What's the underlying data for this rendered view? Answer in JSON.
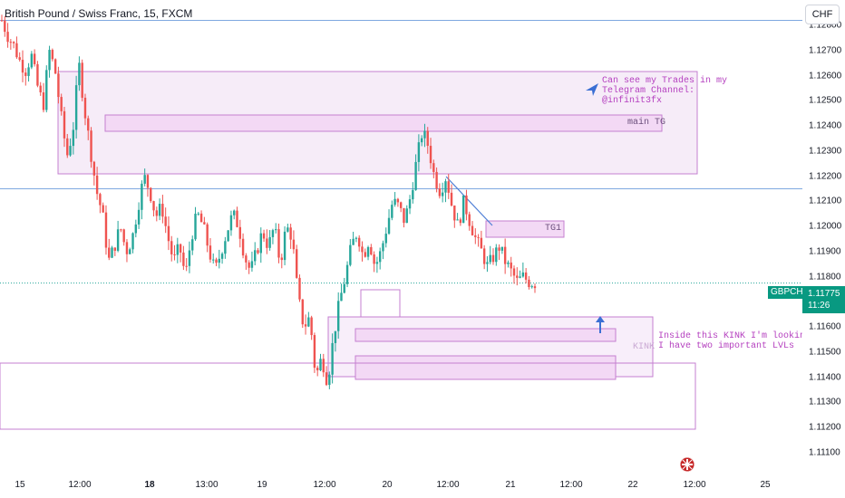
{
  "header": {
    "title": "British Pound / Swiss Franc, 15, FXCM"
  },
  "currency_button": {
    "label": "CHF"
  },
  "last_price": {
    "symbol": "GBPCHF",
    "price": "1.11775",
    "countdown": "11:26"
  },
  "annotations": {
    "trades_note": [
      "Can see my Trades in my",
      "Telegram Channel:",
      "@infinit3fx"
    ],
    "kink_note": [
      "Inside this KINK I'm looking for BUY",
      "I have two important LVLs"
    ],
    "main_tg_label": "main TG",
    "tg1_label": "TG1",
    "kink_label": "KINK"
  },
  "colors": {
    "up": "#26a69a",
    "down": "#ef5350",
    "zone_fill": "#f3e1f5",
    "zone_border": "#c47fd0",
    "hline": "#7fa8e0",
    "annotation": "#b43fbf",
    "badge": "#089981"
  },
  "icons": [
    "send-arrow-icon",
    "up-arrow-icon",
    "uk-flag-icon"
  ],
  "chart_data": {
    "type": "candlestick",
    "title": "British Pound / Swiss Franc, 15, FXCM",
    "ylim": [
      1.111,
      1.129
    ],
    "y_ticks": [
      "1.12800",
      "1.12700",
      "1.12600",
      "1.12500",
      "1.12400",
      "1.12300",
      "1.12200",
      "1.12100",
      "1.12000",
      "1.11900",
      "1.11800",
      "1.11700",
      "1.11600",
      "1.11500",
      "1.11400",
      "1.11300",
      "1.11200",
      "1.11100"
    ],
    "x_ticks": [
      {
        "label": "15",
        "bold": false
      },
      {
        "label": "12:00",
        "bold": false
      },
      {
        "label": "18",
        "bold": true
      },
      {
        "label": "13:00",
        "bold": false
      },
      {
        "label": "19",
        "bold": false
      },
      {
        "label": "12:00",
        "bold": false
      },
      {
        "label": "20",
        "bold": false
      },
      {
        "label": "12:00",
        "bold": false
      },
      {
        "label": "21",
        "bold": false
      },
      {
        "label": "12:00",
        "bold": false
      },
      {
        "label": "22",
        "bold": false
      },
      {
        "label": "12:00",
        "bold": false
      },
      {
        "label": "25",
        "bold": false
      }
    ],
    "horizontal_lines": [
      1.1282,
      1.1215,
      1.11775
    ],
    "price_path": [
      1.1282,
      1.1276,
      1.1272,
      1.1266,
      1.1262,
      1.1268,
      1.1256,
      1.1248,
      1.127,
      1.1262,
      1.1244,
      1.1228,
      1.1238,
      1.1265,
      1.1246,
      1.123,
      1.1214,
      1.1205,
      1.1186,
      1.1192,
      1.12,
      1.119,
      1.1195,
      1.1208,
      1.122,
      1.1214,
      1.1204,
      1.1208,
      1.1196,
      1.1186,
      1.1192,
      1.118,
      1.1196,
      1.1205,
      1.12,
      1.119,
      1.1182,
      1.119,
      1.1198,
      1.1205,
      1.12,
      1.1188,
      1.1182,
      1.119,
      1.1198,
      1.1192,
      1.12,
      1.1185,
      1.12,
      1.1196,
      1.1172,
      1.116,
      1.1164,
      1.114,
      1.1148,
      1.1138,
      1.1156,
      1.117,
      1.118,
      1.1192,
      1.1198,
      1.1188,
      1.1195,
      1.1184,
      1.119,
      1.12,
      1.121,
      1.1208,
      1.1202,
      1.1212,
      1.1226,
      1.1238,
      1.1232,
      1.122,
      1.1214,
      1.122,
      1.1208,
      1.12,
      1.121,
      1.1202,
      1.1195,
      1.119,
      1.1184,
      1.1188,
      1.1192,
      1.1186,
      1.1182,
      1.1178,
      1.118,
      1.1178,
      1.11775
    ]
  }
}
